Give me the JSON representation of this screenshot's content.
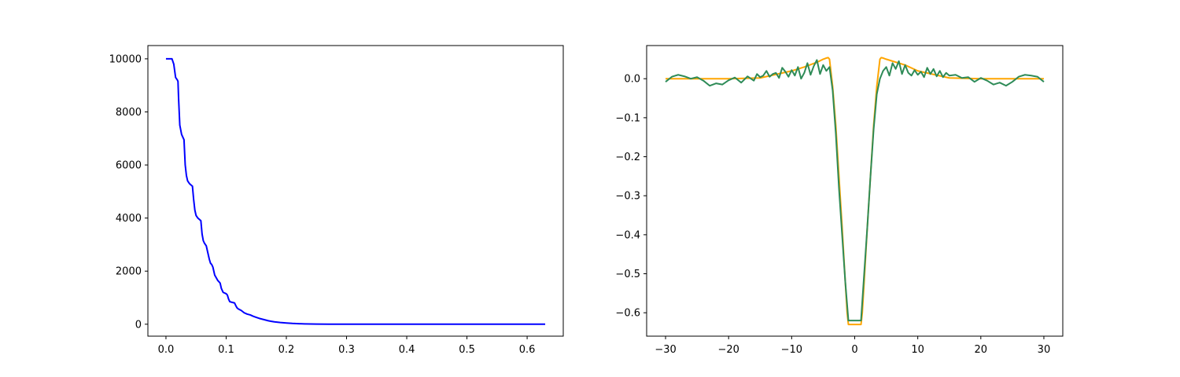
{
  "chart_data": [
    {
      "type": "line",
      "title": "",
      "xlabel": "",
      "ylabel": "",
      "xlim": [
        -0.03,
        0.66
      ],
      "ylim": [
        -450,
        10500
      ],
      "xticks": [
        0.0,
        0.1,
        0.2,
        0.3,
        0.4,
        0.5,
        0.6
      ],
      "xtick_labels": [
        "0.0",
        "0.1",
        "0.2",
        "0.3",
        "0.4",
        "0.5",
        "0.6"
      ],
      "yticks": [
        0,
        2000,
        4000,
        6000,
        8000,
        10000
      ],
      "ytick_labels": [
        "0",
        "2000",
        "4000",
        "6000",
        "8000",
        "10000"
      ],
      "grid": false,
      "series": [
        {
          "color": "#0000ff",
          "x": [
            0.0,
            0.01,
            0.013,
            0.016,
            0.019,
            0.02,
            0.021,
            0.023,
            0.026,
            0.03,
            0.032,
            0.034,
            0.036,
            0.039,
            0.044,
            0.046,
            0.048,
            0.05,
            0.053,
            0.058,
            0.06,
            0.062,
            0.064,
            0.067,
            0.072,
            0.074,
            0.076,
            0.078,
            0.081,
            0.086,
            0.088,
            0.09,
            0.092,
            0.095,
            0.1,
            0.102,
            0.104,
            0.106,
            0.109,
            0.114,
            0.116,
            0.118,
            0.12,
            0.125,
            0.13,
            0.135,
            0.14,
            0.145,
            0.15,
            0.155,
            0.16,
            0.165,
            0.17,
            0.175,
            0.18,
            0.19,
            0.2,
            0.21,
            0.22,
            0.23,
            0.24,
            0.25,
            0.27,
            0.3,
            0.35,
            0.4,
            0.5,
            0.6,
            0.63
          ],
          "y": [
            10000,
            10000,
            9800,
            9300,
            9200,
            9150,
            8500,
            7500,
            7150,
            6950,
            6000,
            5600,
            5400,
            5300,
            5200,
            4700,
            4300,
            4100,
            4000,
            3900,
            3400,
            3150,
            3050,
            2950,
            2450,
            2300,
            2250,
            2150,
            1850,
            1650,
            1600,
            1550,
            1350,
            1200,
            1150,
            1100,
            950,
            850,
            830,
            800,
            700,
            620,
            580,
            520,
            430,
            380,
            350,
            300,
            260,
            220,
            190,
            160,
            130,
            110,
            90,
            65,
            45,
            30,
            20,
            12,
            8,
            5,
            2,
            1,
            0,
            0,
            0,
            0,
            0
          ]
        }
      ]
    },
    {
      "type": "line",
      "title": "",
      "xlabel": "",
      "ylabel": "",
      "xlim": [
        -33,
        33
      ],
      "ylim": [
        -0.66,
        0.085
      ],
      "xticks": [
        -30,
        -20,
        -10,
        0,
        10,
        20,
        30
      ],
      "xtick_labels": [
        "−30",
        "−20",
        "−10",
        "0",
        "10",
        "20",
        "30"
      ],
      "yticks": [
        0.0,
        -0.1,
        -0.2,
        -0.3,
        -0.4,
        -0.5,
        -0.6
      ],
      "ytick_labels": [
        "0.0",
        "−0.1",
        "−0.2",
        "−0.3",
        "−0.4",
        "−0.5",
        "−0.6"
      ],
      "grid": false,
      "series": [
        {
          "color": "#ffa500",
          "x": [
            -30,
            -20,
            -15,
            -10,
            -8,
            -6,
            -5,
            -4.5,
            -4.2,
            -4,
            -3.5,
            -3,
            -2.5,
            -2,
            -1.5,
            -1.2,
            -1,
            -0.5,
            0,
            0.5,
            1,
            1.2,
            1.5,
            2,
            2.5,
            3,
            3.5,
            4,
            4.2,
            4.5,
            5,
            6,
            8,
            10,
            15,
            20,
            30
          ],
          "y": [
            0.0,
            0.0,
            0.002,
            0.02,
            0.03,
            0.042,
            0.05,
            0.053,
            0.054,
            0.05,
            -0.02,
            -0.12,
            -0.25,
            -0.38,
            -0.52,
            -0.6,
            -0.63,
            -0.63,
            -0.63,
            -0.63,
            -0.63,
            -0.6,
            -0.52,
            -0.38,
            -0.25,
            -0.12,
            -0.02,
            0.05,
            0.054,
            0.053,
            0.05,
            0.045,
            0.035,
            0.02,
            0.002,
            0.0,
            0.0
          ]
        },
        {
          "color": "#2e8b57",
          "x": [
            -30,
            -29,
            -28,
            -27,
            -26,
            -25,
            -24,
            -23,
            -22,
            -21,
            -20,
            -19,
            -18,
            -17,
            -16,
            -15.5,
            -15,
            -14.5,
            -14,
            -13.5,
            -13,
            -12.5,
            -12,
            -11.5,
            -11,
            -10.5,
            -10,
            -9.5,
            -9,
            -8.5,
            -8,
            -7.5,
            -7,
            -6.5,
            -6,
            -5.5,
            -5,
            -4.5,
            -4,
            -3.5,
            -3,
            -2.5,
            -2,
            -1.5,
            -1,
            -0.5,
            0,
            0.5,
            1,
            1.5,
            2,
            2.5,
            3,
            3.5,
            4,
            4.5,
            5,
            5.5,
            6,
            6.5,
            7,
            7.5,
            8,
            8.5,
            9,
            9.5,
            10,
            10.5,
            11,
            11.5,
            12,
            12.5,
            13,
            13.5,
            14,
            14.5,
            15,
            16,
            17,
            18,
            19,
            20,
            21,
            22,
            23,
            24,
            25,
            26,
            27,
            28,
            29,
            30
          ],
          "y": [
            -0.008,
            0.005,
            0.01,
            0.006,
            0.0,
            0.004,
            -0.005,
            -0.018,
            -0.012,
            -0.015,
            -0.004,
            0.003,
            -0.01,
            0.006,
            -0.005,
            0.012,
            0.004,
            0.008,
            0.02,
            0.005,
            0.012,
            0.015,
            0.002,
            0.028,
            0.018,
            0.005,
            0.022,
            0.008,
            0.03,
            0.0,
            0.015,
            0.04,
            0.01,
            0.032,
            0.048,
            0.012,
            0.035,
            0.02,
            0.03,
            -0.03,
            -0.14,
            -0.28,
            -0.4,
            -0.52,
            -0.62,
            -0.62,
            -0.62,
            -0.62,
            -0.62,
            -0.5,
            -0.38,
            -0.25,
            -0.13,
            -0.04,
            0.0,
            0.02,
            0.03,
            0.008,
            0.04,
            0.025,
            0.045,
            0.012,
            0.035,
            0.015,
            0.008,
            0.022,
            0.01,
            0.018,
            0.004,
            0.028,
            0.012,
            0.025,
            0.006,
            0.02,
            0.004,
            0.015,
            0.008,
            0.01,
            0.002,
            0.004,
            -0.008,
            0.002,
            -0.005,
            -0.015,
            -0.01,
            -0.018,
            -0.008,
            0.005,
            0.01,
            0.008,
            0.005,
            -0.008
          ]
        }
      ]
    }
  ]
}
